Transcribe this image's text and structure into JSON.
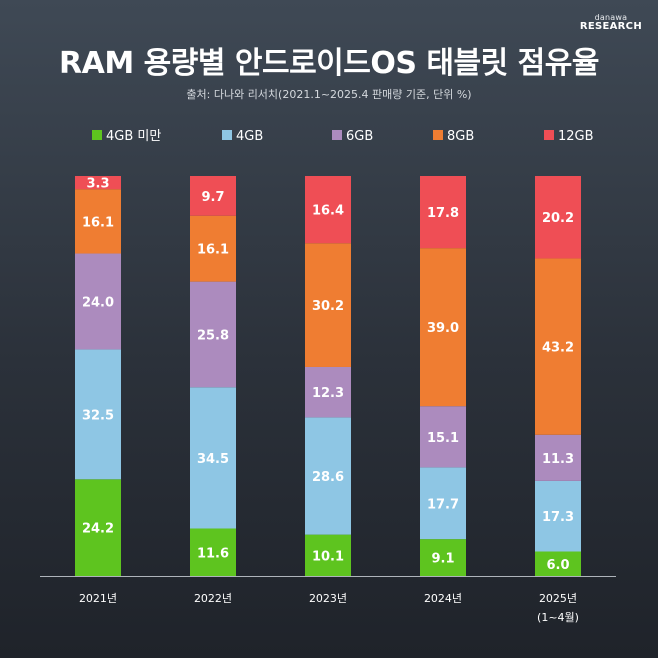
{
  "brand": {
    "top": "danawa",
    "bottom": "RESEARCH"
  },
  "title": "RAM 용량별 안드로이드OS 태블릿 점유율",
  "source": "출처: 다나와 리서치(2021.1~2025.4 판매량 기준, 단위 %)",
  "colors": {
    "under4": "#5ec41f",
    "g4": "#8ec6e4",
    "g6": "#ac8bbe",
    "g8": "#ef7d32",
    "g12": "#ef4e55"
  },
  "chart_data": {
    "type": "bar",
    "stacked": true,
    "title": "RAM 용량별 안드로이드OS 태블릿 점유율",
    "unit": "%",
    "categories": [
      "2021년",
      "2022년",
      "2023년",
      "2024년",
      "2025년"
    ],
    "category_sub": [
      "",
      "",
      "",
      "",
      "(1~4월)"
    ],
    "series": [
      {
        "name": "4GB 미만",
        "key": "under4",
        "values": [
          24.2,
          11.6,
          10.1,
          9.1,
          6.0
        ]
      },
      {
        "name": "4GB",
        "key": "g4",
        "values": [
          32.5,
          34.5,
          28.6,
          17.7,
          17.3
        ]
      },
      {
        "name": "6GB",
        "key": "g6",
        "values": [
          24.0,
          25.8,
          12.3,
          15.1,
          11.3
        ]
      },
      {
        "name": "8GB",
        "key": "g8",
        "values": [
          16.1,
          16.1,
          30.2,
          39.0,
          43.2
        ]
      },
      {
        "name": "12GB",
        "key": "g12",
        "values": [
          3.3,
          9.7,
          16.4,
          17.8,
          20.2
        ]
      }
    ],
    "value_labels": [
      [
        "24.2",
        "11.6",
        "10.1",
        "9.1",
        "6.0"
      ],
      [
        "32.5",
        "34.5",
        "28.6",
        "17.7",
        "17.3"
      ],
      [
        "24.0",
        "25.8",
        "12.3",
        "15.1",
        "11.3"
      ],
      [
        "16.1",
        "16.1",
        "30.2",
        "39.0",
        "43.2"
      ],
      [
        "3.3",
        "9.7",
        "16.4",
        "17.8",
        "20.2"
      ]
    ],
    "ylim": [
      0,
      100
    ],
    "legend": "top"
  }
}
